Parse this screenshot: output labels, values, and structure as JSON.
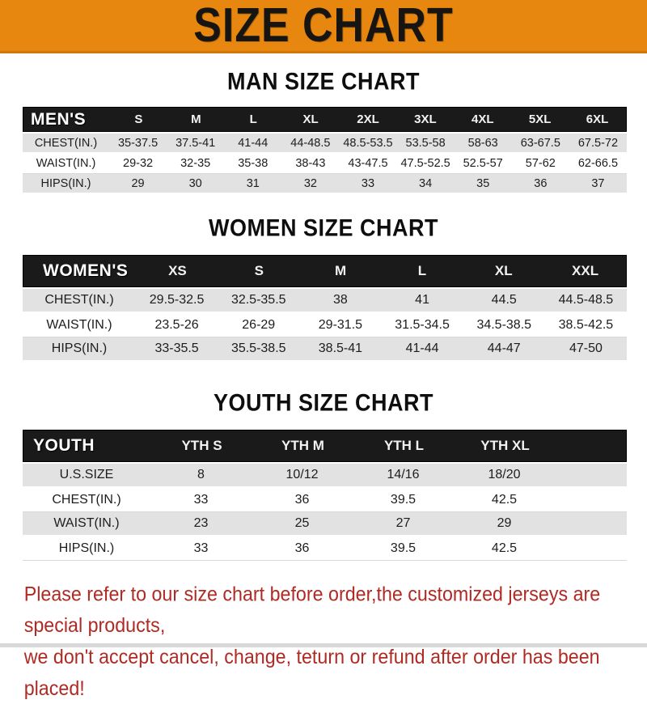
{
  "banner": {
    "title": "SIZE CHART"
  },
  "sections": [
    {
      "id": "men",
      "heading": "MAN SIZE CHART",
      "header_label": "MEN'S",
      "columns": [
        "S",
        "M",
        "L",
        "XL",
        "2XL",
        "3XL",
        "4XL",
        "5XL",
        "6XL"
      ],
      "rows": [
        {
          "label": "CHEST(IN.)",
          "values": [
            "35-37.5",
            "37.5-41",
            "41-44",
            "44-48.5",
            "48.5-53.5",
            "53.5-58",
            "58-63",
            "63-67.5",
            "67.5-72"
          ]
        },
        {
          "label": "WAIST(IN.)",
          "values": [
            "29-32",
            "32-35",
            "35-38",
            "38-43",
            "43-47.5",
            "47.5-52.5",
            "52.5-57",
            "57-62",
            "62-66.5"
          ]
        },
        {
          "label": "HIPS(IN.)",
          "values": [
            "29",
            "30",
            "31",
            "32",
            "33",
            "34",
            "35",
            "36",
            "37"
          ]
        }
      ]
    },
    {
      "id": "women",
      "heading": "WOMEN SIZE CHART",
      "header_label": "WOMEN'S",
      "columns": [
        "XS",
        "S",
        "M",
        "L",
        "XL",
        "XXL"
      ],
      "rows": [
        {
          "label": "CHEST(IN.)",
          "values": [
            "29.5-32.5",
            "32.5-35.5",
            "38",
            "41",
            "44.5",
            "44.5-48.5"
          ]
        },
        {
          "label": "WAIST(IN.)",
          "values": [
            "23.5-26",
            "26-29",
            "29-31.5",
            "31.5-34.5",
            "34.5-38.5",
            "38.5-42.5"
          ]
        },
        {
          "label": "HIPS(IN.)",
          "values": [
            "33-35.5",
            "35.5-38.5",
            "38.5-41",
            "41-44",
            "44-47",
            "47-50"
          ]
        }
      ]
    },
    {
      "id": "youth",
      "heading": "YOUTH SIZE CHART",
      "header_label": "YOUTH",
      "columns": [
        "YTH S",
        "YTH M",
        "YTH L",
        "YTH XL"
      ],
      "rows": [
        {
          "label": "U.S.SIZE",
          "values": [
            "8",
            "10/12",
            "14/16",
            "18/20"
          ]
        },
        {
          "label": "CHEST(IN.)",
          "values": [
            "33",
            "36",
            "39.5",
            "42.5"
          ]
        },
        {
          "label": "WAIST(IN.)",
          "values": [
            "23",
            "25",
            "27",
            "29"
          ]
        },
        {
          "label": "HIPS(IN.)",
          "values": [
            "33",
            "36",
            "39.5",
            "42.5"
          ]
        }
      ]
    }
  ],
  "footer": {
    "line1": "Please refer to our size chart before order,the customized jerseys are special products,",
    "line2": "we don't accept cancel, change, teturn or refund after order has been placed!"
  },
  "colors": {
    "banner_bg": "#E8870F",
    "band_bg": "#1a1a1a",
    "row_alt_bg": "#e2e2e2",
    "footer_text": "#B02A24"
  }
}
